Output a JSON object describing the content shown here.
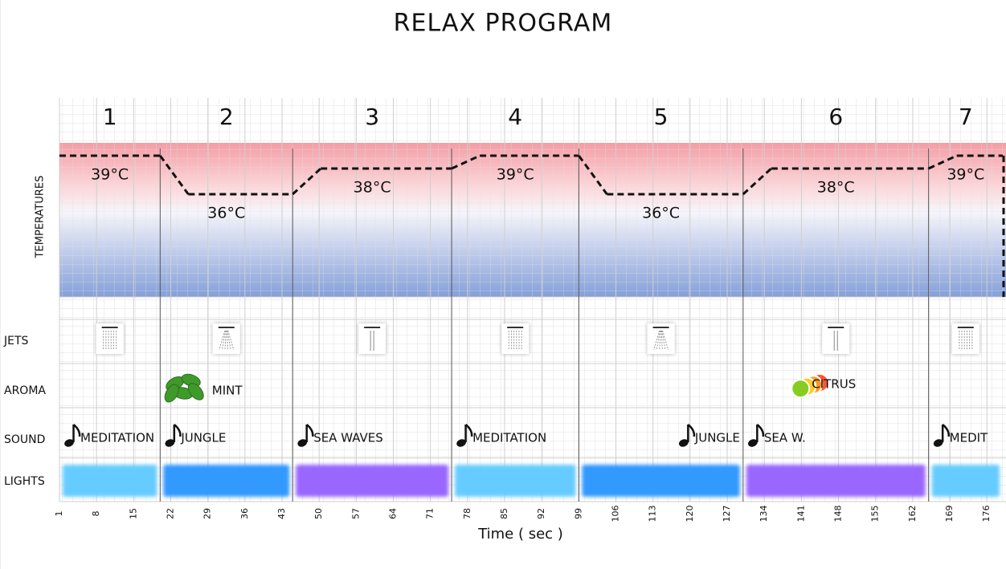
{
  "title": "RELAX  PROGRAM",
  "row_labels": {
    "temperatures": "TEMPERATURES",
    "jets": "JETS",
    "aroma": "AROMA",
    "sound": "SOUND",
    "lights": "LIGHTS"
  },
  "x_axis": {
    "label": "Time ( sec )",
    "xlim": [
      1,
      179
    ],
    "xticks": [
      1,
      8,
      15,
      22,
      29,
      36,
      43,
      50,
      57,
      64,
      71,
      78,
      85,
      92,
      99,
      106,
      113,
      120,
      127,
      134,
      141,
      148,
      155,
      162,
      169,
      176
    ]
  },
  "temperature_ylim": [
    28,
    40
  ],
  "phases": [
    {
      "number": 1,
      "start": 1,
      "end": 20,
      "temperature": 39,
      "temperature_label": "39°C",
      "sound": "MEDITATION",
      "light_color": "#66ccff"
    },
    {
      "number": 2,
      "start": 20,
      "end": 45,
      "temperature": 36,
      "temperature_label": "36°C",
      "aroma": "MINT",
      "sound": "JUNGLE",
      "light_color": "#3399ff"
    },
    {
      "number": 3,
      "start": 45,
      "end": 75,
      "temperature": 38,
      "temperature_label": "38°C",
      "sound": "SEA WAVES",
      "light_color": "#9966ff"
    },
    {
      "number": 4,
      "start": 75,
      "end": 99,
      "temperature": 39,
      "temperature_label": "39°C",
      "sound": "MEDITATION",
      "light_color": "#66ccff"
    },
    {
      "number": 5,
      "start": 99,
      "end": 130,
      "temperature": 36,
      "temperature_label": "36°C",
      "sound": "JUNGLE",
      "light_color": "#3399ff"
    },
    {
      "number": 6,
      "start": 130,
      "end": 165,
      "temperature": 38,
      "temperature_label": "38°C",
      "aroma": "CITRUS",
      "sound": "SEA W.",
      "light_color": "#9966ff"
    },
    {
      "number": 7,
      "start": 165,
      "end": 179,
      "temperature": 39,
      "temperature_label": "39°C",
      "sound": "MEDIT",
      "light_color": "#66ccff"
    }
  ]
}
